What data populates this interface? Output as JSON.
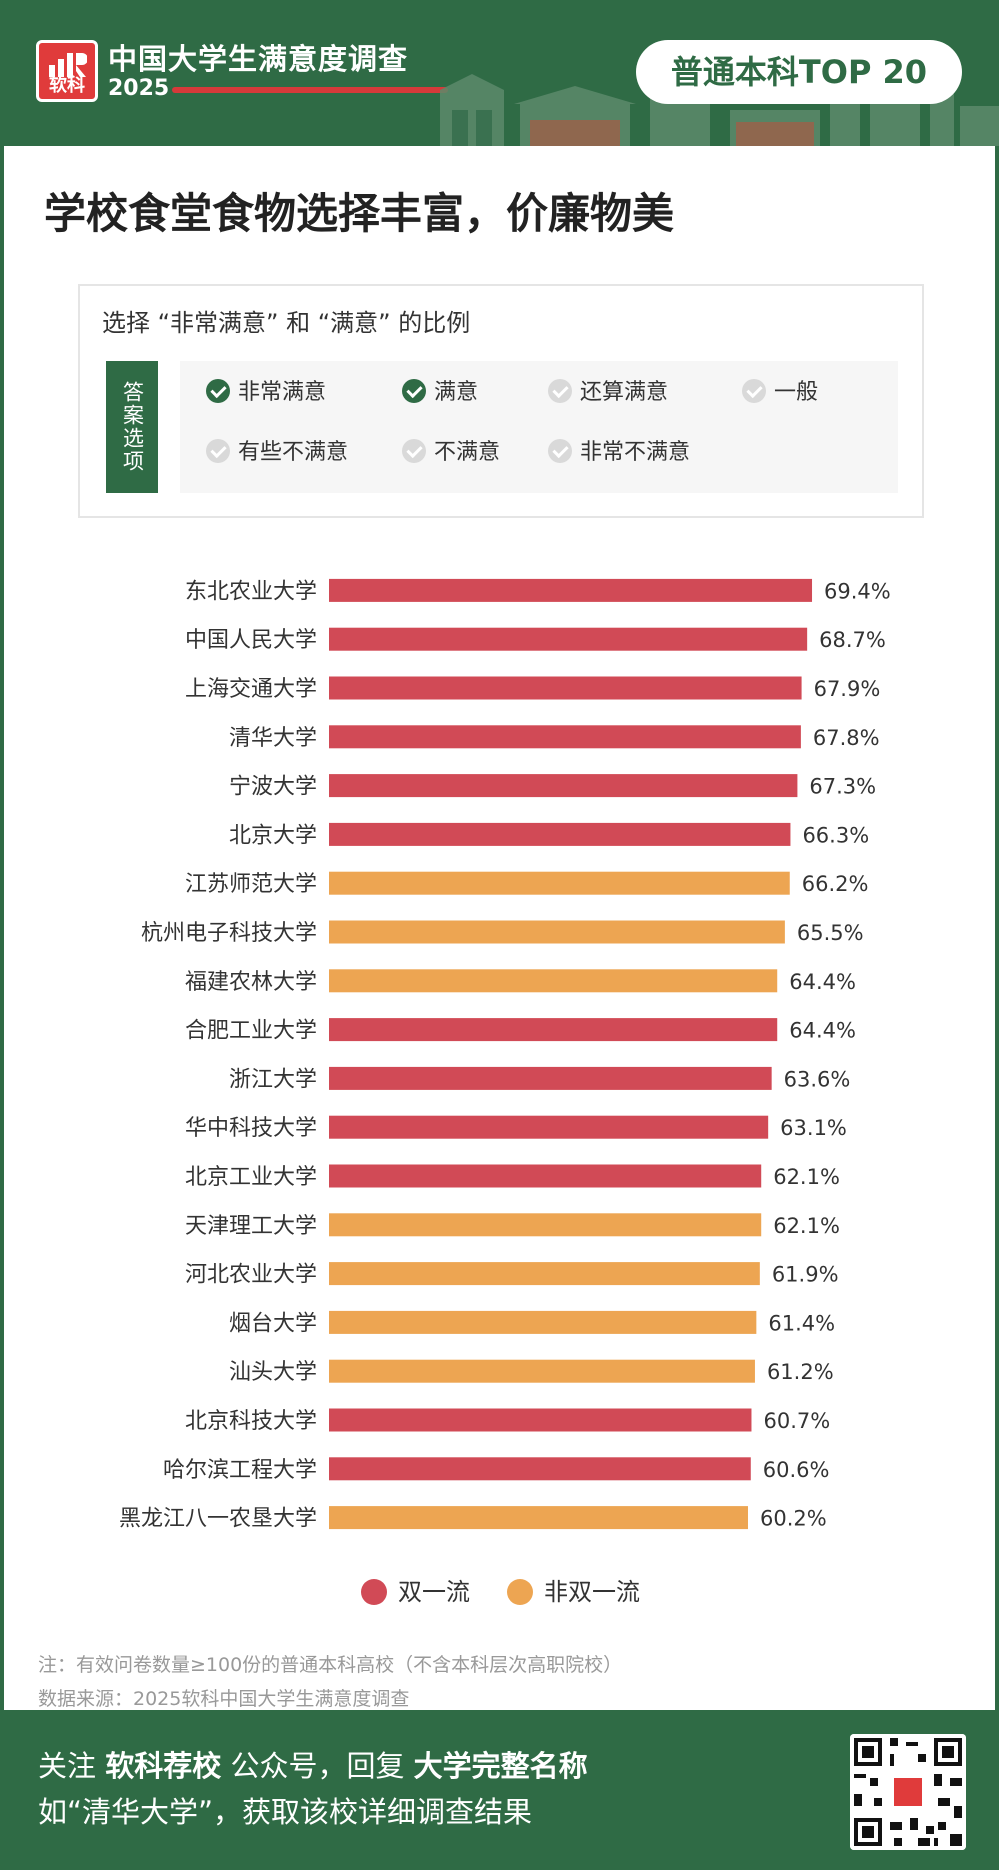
{
  "header": {
    "logo_text": "软科",
    "title": "中国大学生满意度调查",
    "year": "2025",
    "tag": "普通本科TOP 20"
  },
  "main_title": "学校食堂食物选择丰富，价廉物美",
  "options": {
    "title": "选择 “非常满意” 和 “满意” 的比例",
    "label": "答案选项",
    "items": [
      {
        "label": "非常满意",
        "checked": true
      },
      {
        "label": "满意",
        "checked": true
      },
      {
        "label": "还算满意",
        "checked": false
      },
      {
        "label": "一般",
        "checked": false
      },
      {
        "label": "有些不满意",
        "checked": false
      },
      {
        "label": "不满意",
        "checked": false
      },
      {
        "label": "非常不满意",
        "checked": false
      }
    ]
  },
  "chart_data": {
    "type": "bar",
    "orientation": "horizontal",
    "categories": [
      "东北农业大学",
      "中国人民大学",
      "上海交通大学",
      "清华大学",
      "宁波大学",
      "北京大学",
      "江苏师范大学",
      "杭州电子科技大学",
      "福建农林大学",
      "合肥工业大学",
      "浙江大学",
      "华中科技大学",
      "北京工业大学",
      "天津理工大学",
      "河北农业大学",
      "烟台大学",
      "汕头大学",
      "北京科技大学",
      "哈尔滨工程大学",
      "黑龙江八一农垦大学"
    ],
    "values": [
      69.4,
      68.7,
      67.9,
      67.8,
      67.3,
      66.3,
      66.2,
      65.5,
      64.4,
      64.4,
      63.6,
      63.1,
      62.1,
      62.1,
      61.9,
      61.4,
      61.2,
      60.7,
      60.6,
      60.2
    ],
    "value_labels": [
      "69.4%",
      "68.7%",
      "67.9%",
      "67.8%",
      "67.3%",
      "66.3%",
      "66.2%",
      "65.5%",
      "64.4%",
      "64.4%",
      "63.6%",
      "63.1%",
      "62.1%",
      "62.1%",
      "61.9%",
      "61.4%",
      "61.2%",
      "60.7%",
      "60.6%",
      "60.2%"
    ],
    "group": [
      0,
      0,
      0,
      0,
      0,
      0,
      1,
      1,
      1,
      0,
      0,
      0,
      0,
      1,
      1,
      1,
      1,
      0,
      0,
      1
    ],
    "legend": [
      {
        "name": "双一流",
        "color": "#d14a56"
      },
      {
        "name": "非双一流",
        "color": "#eda552"
      }
    ],
    "legend_position": "bottom",
    "grid": false
  },
  "notes": {
    "note1": "注：有效问卷数量≥100份的普通本科高校（不含本科层次高职院校）",
    "note2": "数据来源：2025软科中国大学生满意度调查"
  },
  "footer": {
    "l1_a": "关注 ",
    "l1_b": "软科荐校",
    "l1_c": " 公众号，回复 ",
    "l1_d": "大学完整名称",
    "line2": "如“清华大学”，获取该校详细调查结果"
  },
  "colors": {
    "brand_green": "#2f6b45",
    "first_class": "#d14a56",
    "non_first_class": "#eda552"
  }
}
